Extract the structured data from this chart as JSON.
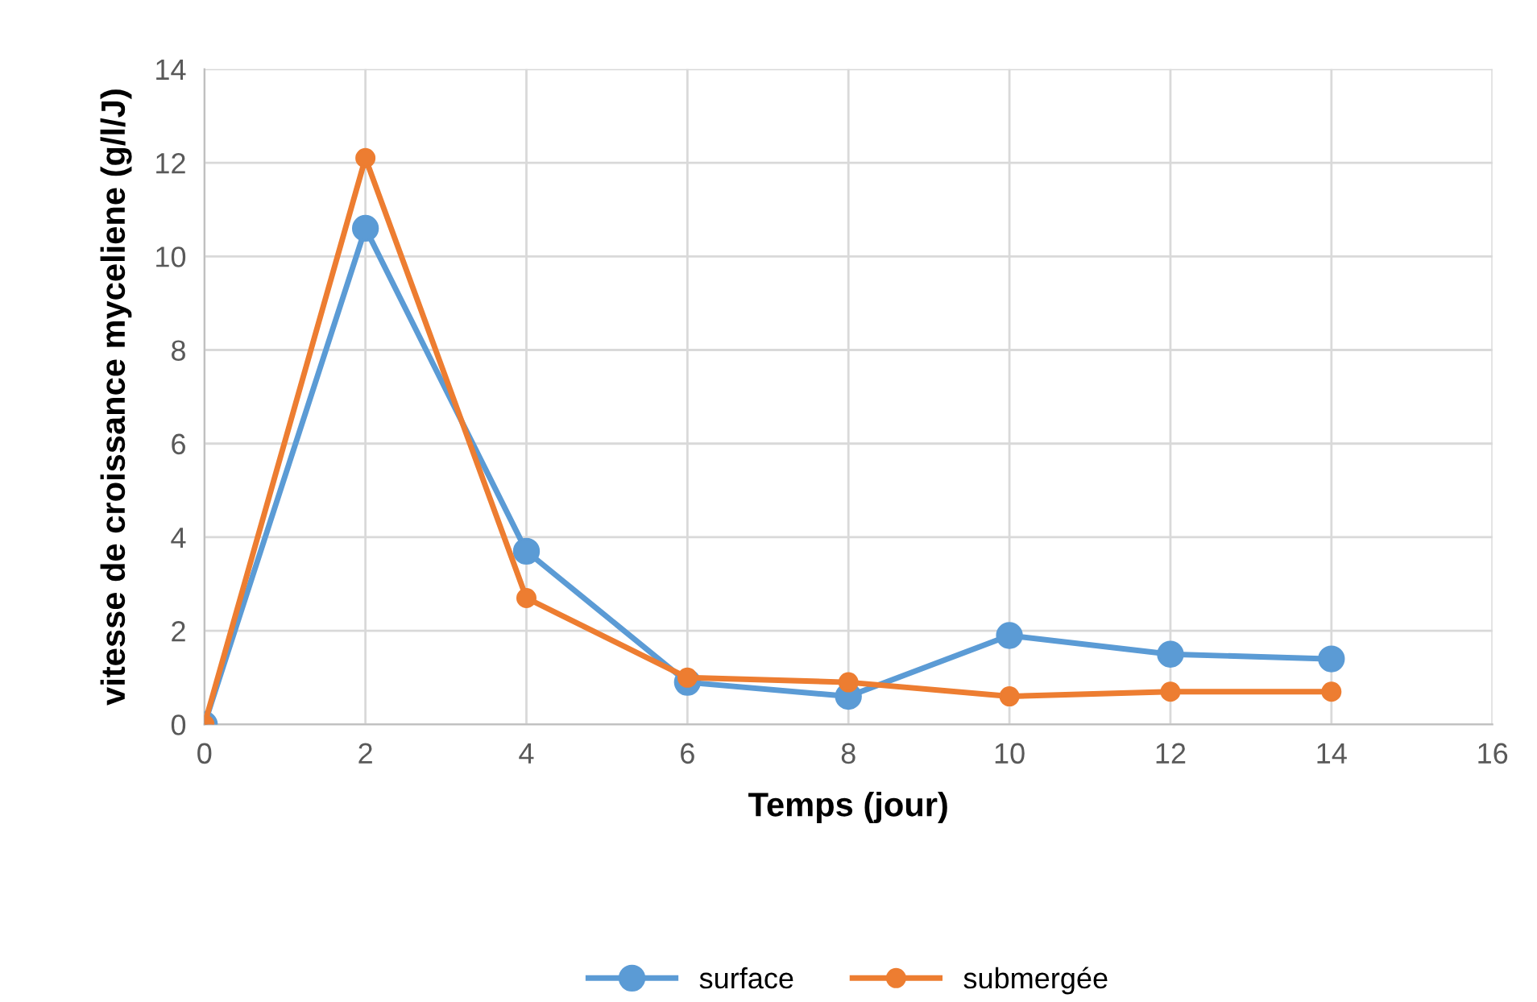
{
  "chart_data": {
    "type": "line",
    "xlabel": "Temps (jour)",
    "ylabel": "vitesse de croissance myceliene (g/l/J)",
    "x": [
      0,
      2,
      4,
      6,
      8,
      10,
      12,
      14
    ],
    "series": [
      {
        "name": "surface",
        "color": "#5b9bd5",
        "values": [
          0,
          10.6,
          3.7,
          0.9,
          0.6,
          1.9,
          1.5,
          1.4
        ]
      },
      {
        "name": "submergée",
        "color": "#ed7d31",
        "values": [
          0,
          12.1,
          2.7,
          1.0,
          0.9,
          0.6,
          0.7,
          0.7
        ]
      }
    ],
    "xlim": [
      0,
      16
    ],
    "xticks": [
      0,
      2,
      4,
      6,
      8,
      10,
      12,
      14,
      16
    ],
    "ylim": [
      0,
      14
    ],
    "yticks": [
      0,
      2,
      4,
      6,
      8,
      10,
      12,
      14
    ],
    "grid": true,
    "legend": "bottom",
    "marker": "circle",
    "line_style": "solid"
  }
}
